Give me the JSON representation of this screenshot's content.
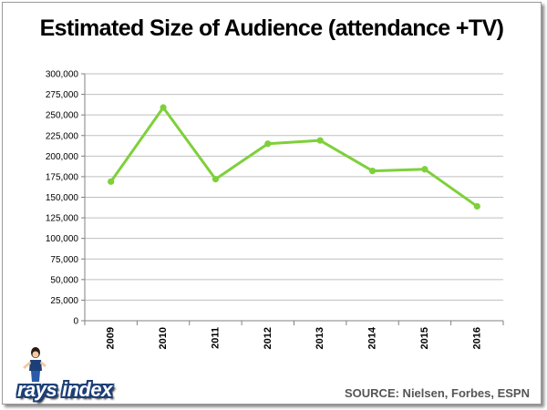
{
  "chart_data": {
    "type": "line",
    "title": "Estimated Size of Audience (attendance +TV)",
    "xlabel": "",
    "ylabel": "",
    "categories": [
      "2009",
      "2010",
      "2011",
      "2012",
      "2013",
      "2014",
      "2015",
      "2016"
    ],
    "series": [
      {
        "values": [
          169000,
          259000,
          172000,
          215000,
          219000,
          182000,
          184000,
          139000
        ]
      }
    ],
    "ylim": [
      0,
      300000
    ],
    "yticks": [
      "0",
      "25,000",
      "50,000",
      "75,000",
      "100,000",
      "125,000",
      "150,000",
      "175,000",
      "200,000",
      "225,000",
      "250,000",
      "275,000",
      "300,000"
    ],
    "grid": true,
    "legend": "none",
    "colors": {
      "line": "#7ed03a",
      "grid": "#bfbfbf",
      "axis": "#808080"
    }
  },
  "source_text": "SOURCE: Nielsen, Forbes, ESPN",
  "logo": {
    "text": "rays index",
    "icon": "mascot-figure-icon"
  }
}
